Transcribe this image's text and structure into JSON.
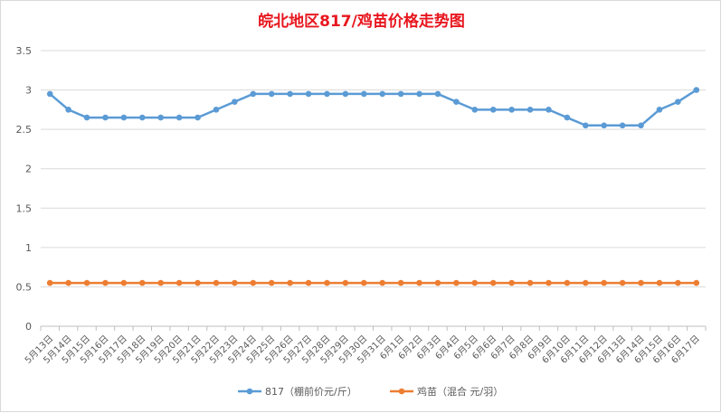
{
  "chart_data": {
    "type": "line",
    "title": "皖北地区817/鸡苗价格走势图",
    "categories": [
      "5月13日",
      "5月14日",
      "5月15日",
      "5月16日",
      "5月17日",
      "5月18日",
      "5月19日",
      "5月20日",
      "5月21日",
      "5月22日",
      "5月23日",
      "5月24日",
      "5月25日",
      "5月26日",
      "5月27日",
      "5月28日",
      "5月29日",
      "5月30日",
      "5月31日",
      "6月1日",
      "6月2日",
      "6月3日",
      "6月4日",
      "6月5日",
      "6月6日",
      "6月7日",
      "6月8日",
      "6月9日",
      "6月10日",
      "6月11日",
      "6月12日",
      "6月13日",
      "6月14日",
      "6月15日",
      "6月16日",
      "6月17日"
    ],
    "series": [
      {
        "name": "817（棚前价元/斤）",
        "color": "#5b9bd5",
        "values": [
          2.95,
          2.75,
          2.65,
          2.65,
          2.65,
          2.65,
          2.65,
          2.65,
          2.65,
          2.75,
          2.85,
          2.95,
          2.95,
          2.95,
          2.95,
          2.95,
          2.95,
          2.95,
          2.95,
          2.95,
          2.95,
          2.95,
          2.85,
          2.75,
          2.75,
          2.75,
          2.75,
          2.75,
          2.65,
          2.55,
          2.55,
          2.55,
          2.55,
          2.75,
          2.85,
          3.0
        ]
      },
      {
        "name": "鸡苗（混合 元/羽）",
        "color": "#ed7d31",
        "values": [
          0.55,
          0.55,
          0.55,
          0.55,
          0.55,
          0.55,
          0.55,
          0.55,
          0.55,
          0.55,
          0.55,
          0.55,
          0.55,
          0.55,
          0.55,
          0.55,
          0.55,
          0.55,
          0.55,
          0.55,
          0.55,
          0.55,
          0.55,
          0.55,
          0.55,
          0.55,
          0.55,
          0.55,
          0.55,
          0.55,
          0.55,
          0.55,
          0.55,
          0.55,
          0.55,
          0.55
        ]
      }
    ],
    "yticks": [
      "0",
      "0.5",
      "1",
      "1.5",
      "2",
      "2.5",
      "3",
      "3.5"
    ],
    "ylim": [
      0,
      3.5
    ],
    "grid": true,
    "legend": "bottom"
  }
}
